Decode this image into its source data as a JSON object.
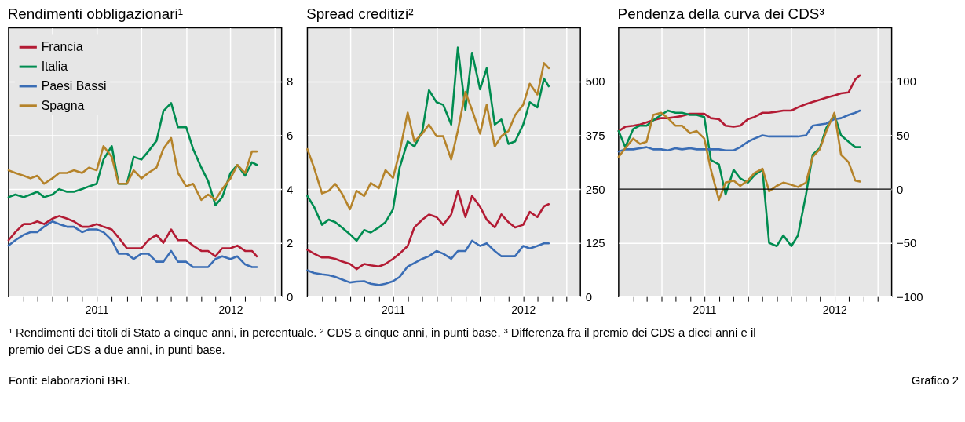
{
  "chart_data": [
    {
      "type": "line",
      "title": "Rendimenti obbligazionari¹",
      "legend": "top left",
      "grid": true,
      "x": [
        "2011-01-01",
        "2011-01-15",
        "2011-02-01",
        "2011-02-15",
        "2011-03-01",
        "2011-03-15",
        "2011-04-01",
        "2011-04-15",
        "2011-05-01",
        "2011-05-15",
        "2011-06-01",
        "2011-06-15",
        "2011-07-01",
        "2011-07-15",
        "2011-08-01",
        "2011-08-15",
        "2011-09-01",
        "2011-09-15",
        "2011-10-01",
        "2011-10-15",
        "2011-11-01",
        "2011-11-15",
        "2011-12-01",
        "2011-12-15",
        "2012-01-01",
        "2012-01-15",
        "2012-02-01",
        "2012-02-15",
        "2012-03-01",
        "2012-03-15",
        "2012-04-01",
        "2012-04-15",
        "2012-05-01",
        "2012-05-15",
        "2012-05-25"
      ],
      "xlim": [
        "2011-01-01",
        "2012-07-15"
      ],
      "xticks": [
        {
          "value": "2011-02-01",
          "label": null
        },
        {
          "value": "2011-03-01",
          "label": null
        },
        {
          "value": "2011-04-01",
          "label": null
        },
        {
          "value": "2011-05-01",
          "label": null
        },
        {
          "value": "2011-06-01",
          "label": null
        },
        {
          "value": "2011-07-01",
          "label": "2011"
        },
        {
          "value": "2011-08-01",
          "label": null
        },
        {
          "value": "2011-09-01",
          "label": null
        },
        {
          "value": "2011-10-01",
          "label": null
        },
        {
          "value": "2011-11-01",
          "label": null
        },
        {
          "value": "2011-12-01",
          "label": null
        },
        {
          "value": "2012-01-01",
          "label": null
        },
        {
          "value": "2012-02-01",
          "label": null
        },
        {
          "value": "2012-03-01",
          "label": null
        },
        {
          "value": "2012-04-01",
          "label": "2012"
        },
        {
          "value": "2012-05-01",
          "label": null
        },
        {
          "value": "2012-06-01",
          "label": null
        },
        {
          "value": "2012-07-01",
          "label": null
        }
      ],
      "ylim": [
        0,
        10
      ],
      "yticks": [
        0,
        2,
        4,
        6,
        8
      ],
      "series": [
        {
          "name": "Francia",
          "color": "#b31b34",
          "values": [
            2.1,
            2.4,
            2.7,
            2.7,
            2.8,
            2.7,
            2.9,
            3.0,
            2.9,
            2.8,
            2.6,
            2.6,
            2.7,
            2.6,
            2.5,
            2.2,
            1.8,
            1.8,
            1.8,
            2.1,
            2.3,
            2.0,
            2.5,
            2.1,
            2.1,
            1.9,
            1.7,
            1.7,
            1.5,
            1.8,
            1.8,
            1.9,
            1.7,
            1.7,
            1.5
          ]
        },
        {
          "name": "Italia",
          "color": "#008c50",
          "values": [
            3.7,
            3.8,
            3.7,
            3.8,
            3.9,
            3.7,
            3.8,
            4.0,
            3.9,
            3.9,
            4.0,
            4.1,
            4.2,
            5.1,
            5.6,
            4.2,
            4.2,
            5.2,
            5.1,
            5.4,
            5.8,
            6.9,
            7.2,
            6.3,
            6.3,
            5.5,
            4.8,
            4.3,
            3.4,
            3.7,
            4.6,
            4.9,
            4.5,
            5.0,
            4.9
          ]
        },
        {
          "name": "Paesi Bassi",
          "color": "#3a6db5",
          "values": [
            1.9,
            2.1,
            2.3,
            2.4,
            2.4,
            2.6,
            2.8,
            2.7,
            2.6,
            2.6,
            2.4,
            2.5,
            2.5,
            2.4,
            2.1,
            1.6,
            1.6,
            1.4,
            1.6,
            1.6,
            1.3,
            1.3,
            1.7,
            1.3,
            1.3,
            1.1,
            1.1,
            1.1,
            1.4,
            1.5,
            1.4,
            1.5,
            1.2,
            1.1,
            1.1
          ]
        },
        {
          "name": "Spagna",
          "color": "#b5832a",
          "values": [
            4.7,
            4.6,
            4.5,
            4.4,
            4.5,
            4.2,
            4.4,
            4.6,
            4.6,
            4.7,
            4.6,
            4.8,
            4.7,
            5.6,
            5.2,
            4.2,
            4.2,
            4.7,
            4.4,
            4.6,
            4.8,
            5.5,
            5.9,
            4.6,
            4.1,
            4.2,
            3.6,
            3.8,
            3.6,
            4.0,
            4.4,
            4.9,
            4.6,
            5.4,
            5.4
          ]
        }
      ],
      "annotations": [
        "¹ Rendimenti dei titoli di Stato a cinque anni, in percentuale."
      ]
    },
    {
      "type": "line",
      "title": "Spread creditizi²",
      "grid": true,
      "x": [
        "2011-01-01",
        "2011-01-15",
        "2011-02-01",
        "2011-02-15",
        "2011-03-01",
        "2011-03-15",
        "2011-04-01",
        "2011-04-15",
        "2011-05-01",
        "2011-05-15",
        "2011-06-01",
        "2011-06-15",
        "2011-07-01",
        "2011-07-15",
        "2011-08-01",
        "2011-08-15",
        "2011-09-01",
        "2011-09-15",
        "2011-10-01",
        "2011-10-15",
        "2011-11-01",
        "2011-11-15",
        "2011-12-01",
        "2011-12-15",
        "2012-01-01",
        "2012-01-15",
        "2012-02-01",
        "2012-02-15",
        "2012-03-01",
        "2012-03-15",
        "2012-04-01",
        "2012-04-15",
        "2012-05-01",
        "2012-05-15",
        "2012-05-25"
      ],
      "xlim": [
        "2011-01-01",
        "2012-07-31"
      ],
      "xticks": [
        {
          "value": "2011-02-01",
          "label": null
        },
        {
          "value": "2011-03-01",
          "label": null
        },
        {
          "value": "2011-04-01",
          "label": null
        },
        {
          "value": "2011-05-01",
          "label": null
        },
        {
          "value": "2011-06-01",
          "label": null
        },
        {
          "value": "2011-07-01",
          "label": "2011"
        },
        {
          "value": "2011-08-01",
          "label": null
        },
        {
          "value": "2011-09-01",
          "label": null
        },
        {
          "value": "2011-10-01",
          "label": null
        },
        {
          "value": "2011-11-01",
          "label": null
        },
        {
          "value": "2011-12-01",
          "label": null
        },
        {
          "value": "2012-01-01",
          "label": null
        },
        {
          "value": "2012-02-01",
          "label": null
        },
        {
          "value": "2012-03-01",
          "label": null
        },
        {
          "value": "2012-04-01",
          "label": "2012"
        },
        {
          "value": "2012-05-01",
          "label": null
        },
        {
          "value": "2012-06-01",
          "label": null
        },
        {
          "value": "2012-07-01",
          "label": null
        }
      ],
      "ylim": [
        0,
        625
      ],
      "yticks": [
        0,
        125,
        250,
        375,
        500
      ],
      "series": [
        {
          "color": "#b31b34",
          "values": [
            109,
            100,
            91,
            91,
            88,
            82,
            76,
            64,
            76,
            73,
            70,
            76,
            88,
            100,
            118,
            161,
            179,
            191,
            185,
            167,
            191,
            246,
            185,
            234,
            209,
            179,
            161,
            191,
            173,
            161,
            167,
            197,
            185,
            210,
            215
          ]
        },
        {
          "color": "#008c50",
          "values": [
            234,
            209,
            167,
            179,
            173,
            161,
            145,
            130,
            155,
            149,
            161,
            173,
            203,
            300,
            361,
            349,
            385,
            480,
            452,
            446,
            400,
            579,
            434,
            567,
            482,
            531,
            400,
            412,
            355,
            361,
            400,
            452,
            440,
            507,
            489
          ]
        },
        {
          "color": "#3a6db5",
          "values": [
            61,
            55,
            52,
            50,
            46,
            40,
            33,
            35,
            36,
            30,
            27,
            30,
            36,
            46,
            70,
            78,
            88,
            94,
            106,
            100,
            88,
            106,
            106,
            130,
            118,
            124,
            106,
            94,
            94,
            94,
            118,
            112,
            118,
            124,
            124
          ]
        },
        {
          "color": "#b5832a",
          "values": [
            343,
            300,
            240,
            246,
            262,
            240,
            203,
            246,
            234,
            264,
            252,
            294,
            276,
            337,
            428,
            361,
            379,
            400,
            373,
            373,
            319,
            386,
            476,
            434,
            379,
            446,
            349,
            373,
            385,
            422,
            446,
            495,
            470,
            543,
            531
          ]
        }
      ],
      "annotations": [
        "² CDS a cinque anni, in punti base."
      ]
    },
    {
      "type": "line",
      "title": "Pendenza della curva dei CDS³",
      "grid": true,
      "x": [
        "2011-01-01",
        "2011-01-15",
        "2011-02-01",
        "2011-02-15",
        "2011-03-01",
        "2011-03-15",
        "2011-04-01",
        "2011-04-15",
        "2011-05-01",
        "2011-05-15",
        "2011-06-01",
        "2011-06-15",
        "2011-07-01",
        "2011-07-15",
        "2011-08-01",
        "2011-08-15",
        "2011-09-01",
        "2011-09-15",
        "2011-10-01",
        "2011-10-15",
        "2011-11-01",
        "2011-11-15",
        "2011-12-01",
        "2011-12-15",
        "2012-01-01",
        "2012-01-15",
        "2012-02-01",
        "2012-02-15",
        "2012-03-01",
        "2012-03-15",
        "2012-04-01",
        "2012-04-15",
        "2012-05-01",
        "2012-05-15",
        "2012-05-25"
      ],
      "xlim": [
        "2011-01-01",
        "2012-07-31"
      ],
      "xticks": [
        {
          "value": "2011-02-01",
          "label": null
        },
        {
          "value": "2011-03-01",
          "label": null
        },
        {
          "value": "2011-04-01",
          "label": null
        },
        {
          "value": "2011-05-01",
          "label": null
        },
        {
          "value": "2011-06-01",
          "label": null
        },
        {
          "value": "2011-07-01",
          "label": "2011"
        },
        {
          "value": "2011-08-01",
          "label": null
        },
        {
          "value": "2011-09-01",
          "label": null
        },
        {
          "value": "2011-10-01",
          "label": null
        },
        {
          "value": "2011-11-01",
          "label": null
        },
        {
          "value": "2011-12-01",
          "label": null
        },
        {
          "value": "2012-01-01",
          "label": null
        },
        {
          "value": "2012-02-01",
          "label": null
        },
        {
          "value": "2012-03-01",
          "label": null
        },
        {
          "value": "2012-04-01",
          "label": "2012"
        },
        {
          "value": "2012-05-01",
          "label": null
        },
        {
          "value": "2012-06-01",
          "label": null
        },
        {
          "value": "2012-07-01",
          "label": null
        }
      ],
      "ylim": [
        -100,
        150
      ],
      "yticks": [
        {
          "value": -100,
          "label": "−100"
        },
        {
          "value": -50,
          "label": "−50"
        },
        0,
        50,
        100
      ],
      "ref_lines": [
        {
          "axis": "y",
          "value": 0,
          "color": "#000000"
        }
      ],
      "series": [
        {
          "color": "#b31b34",
          "values": [
            54,
            58,
            59,
            60,
            62,
            64,
            66,
            66,
            67,
            68,
            70,
            70,
            70,
            66,
            65,
            59,
            58,
            59,
            65,
            67,
            71,
            71,
            72,
            73,
            73,
            76,
            79,
            81,
            83,
            85,
            87,
            89,
            90,
            102,
            106
          ]
        },
        {
          "color": "#008c50",
          "values": [
            54,
            39,
            56,
            59,
            59,
            64,
            69,
            73,
            71,
            71,
            69,
            69,
            67,
            27,
            23,
            -5,
            18,
            10,
            6,
            13,
            18,
            -50,
            -53,
            -43,
            -53,
            -43,
            -5,
            32,
            38,
            57,
            69,
            50,
            44,
            39,
            39
          ]
        },
        {
          "color": "#3a6db5",
          "values": [
            35,
            37,
            37,
            38,
            39,
            37,
            37,
            36,
            38,
            37,
            38,
            37,
            37,
            37,
            37,
            36,
            36,
            39,
            44,
            47,
            50,
            49,
            49,
            49,
            49,
            49,
            50,
            59,
            60,
            61,
            65,
            66,
            69,
            71,
            73
          ]
        },
        {
          "color": "#b5832a",
          "values": [
            30,
            38,
            47,
            42,
            44,
            69,
            71,
            66,
            59,
            59,
            52,
            54,
            47,
            18,
            -10,
            6,
            8,
            3,
            8,
            15,
            19,
            -2,
            3,
            6,
            4,
            2,
            6,
            30,
            37,
            54,
            71,
            32,
            25,
            8,
            7
          ]
        }
      ],
      "annotations": [
        "³ Differenza fra il premio dei CDS a dieci anni e il premio dei CDS a due anni, in punti base.",
        "Fonti: elaborazioni BRI.",
        "Grafico 2"
      ]
    }
  ]
}
